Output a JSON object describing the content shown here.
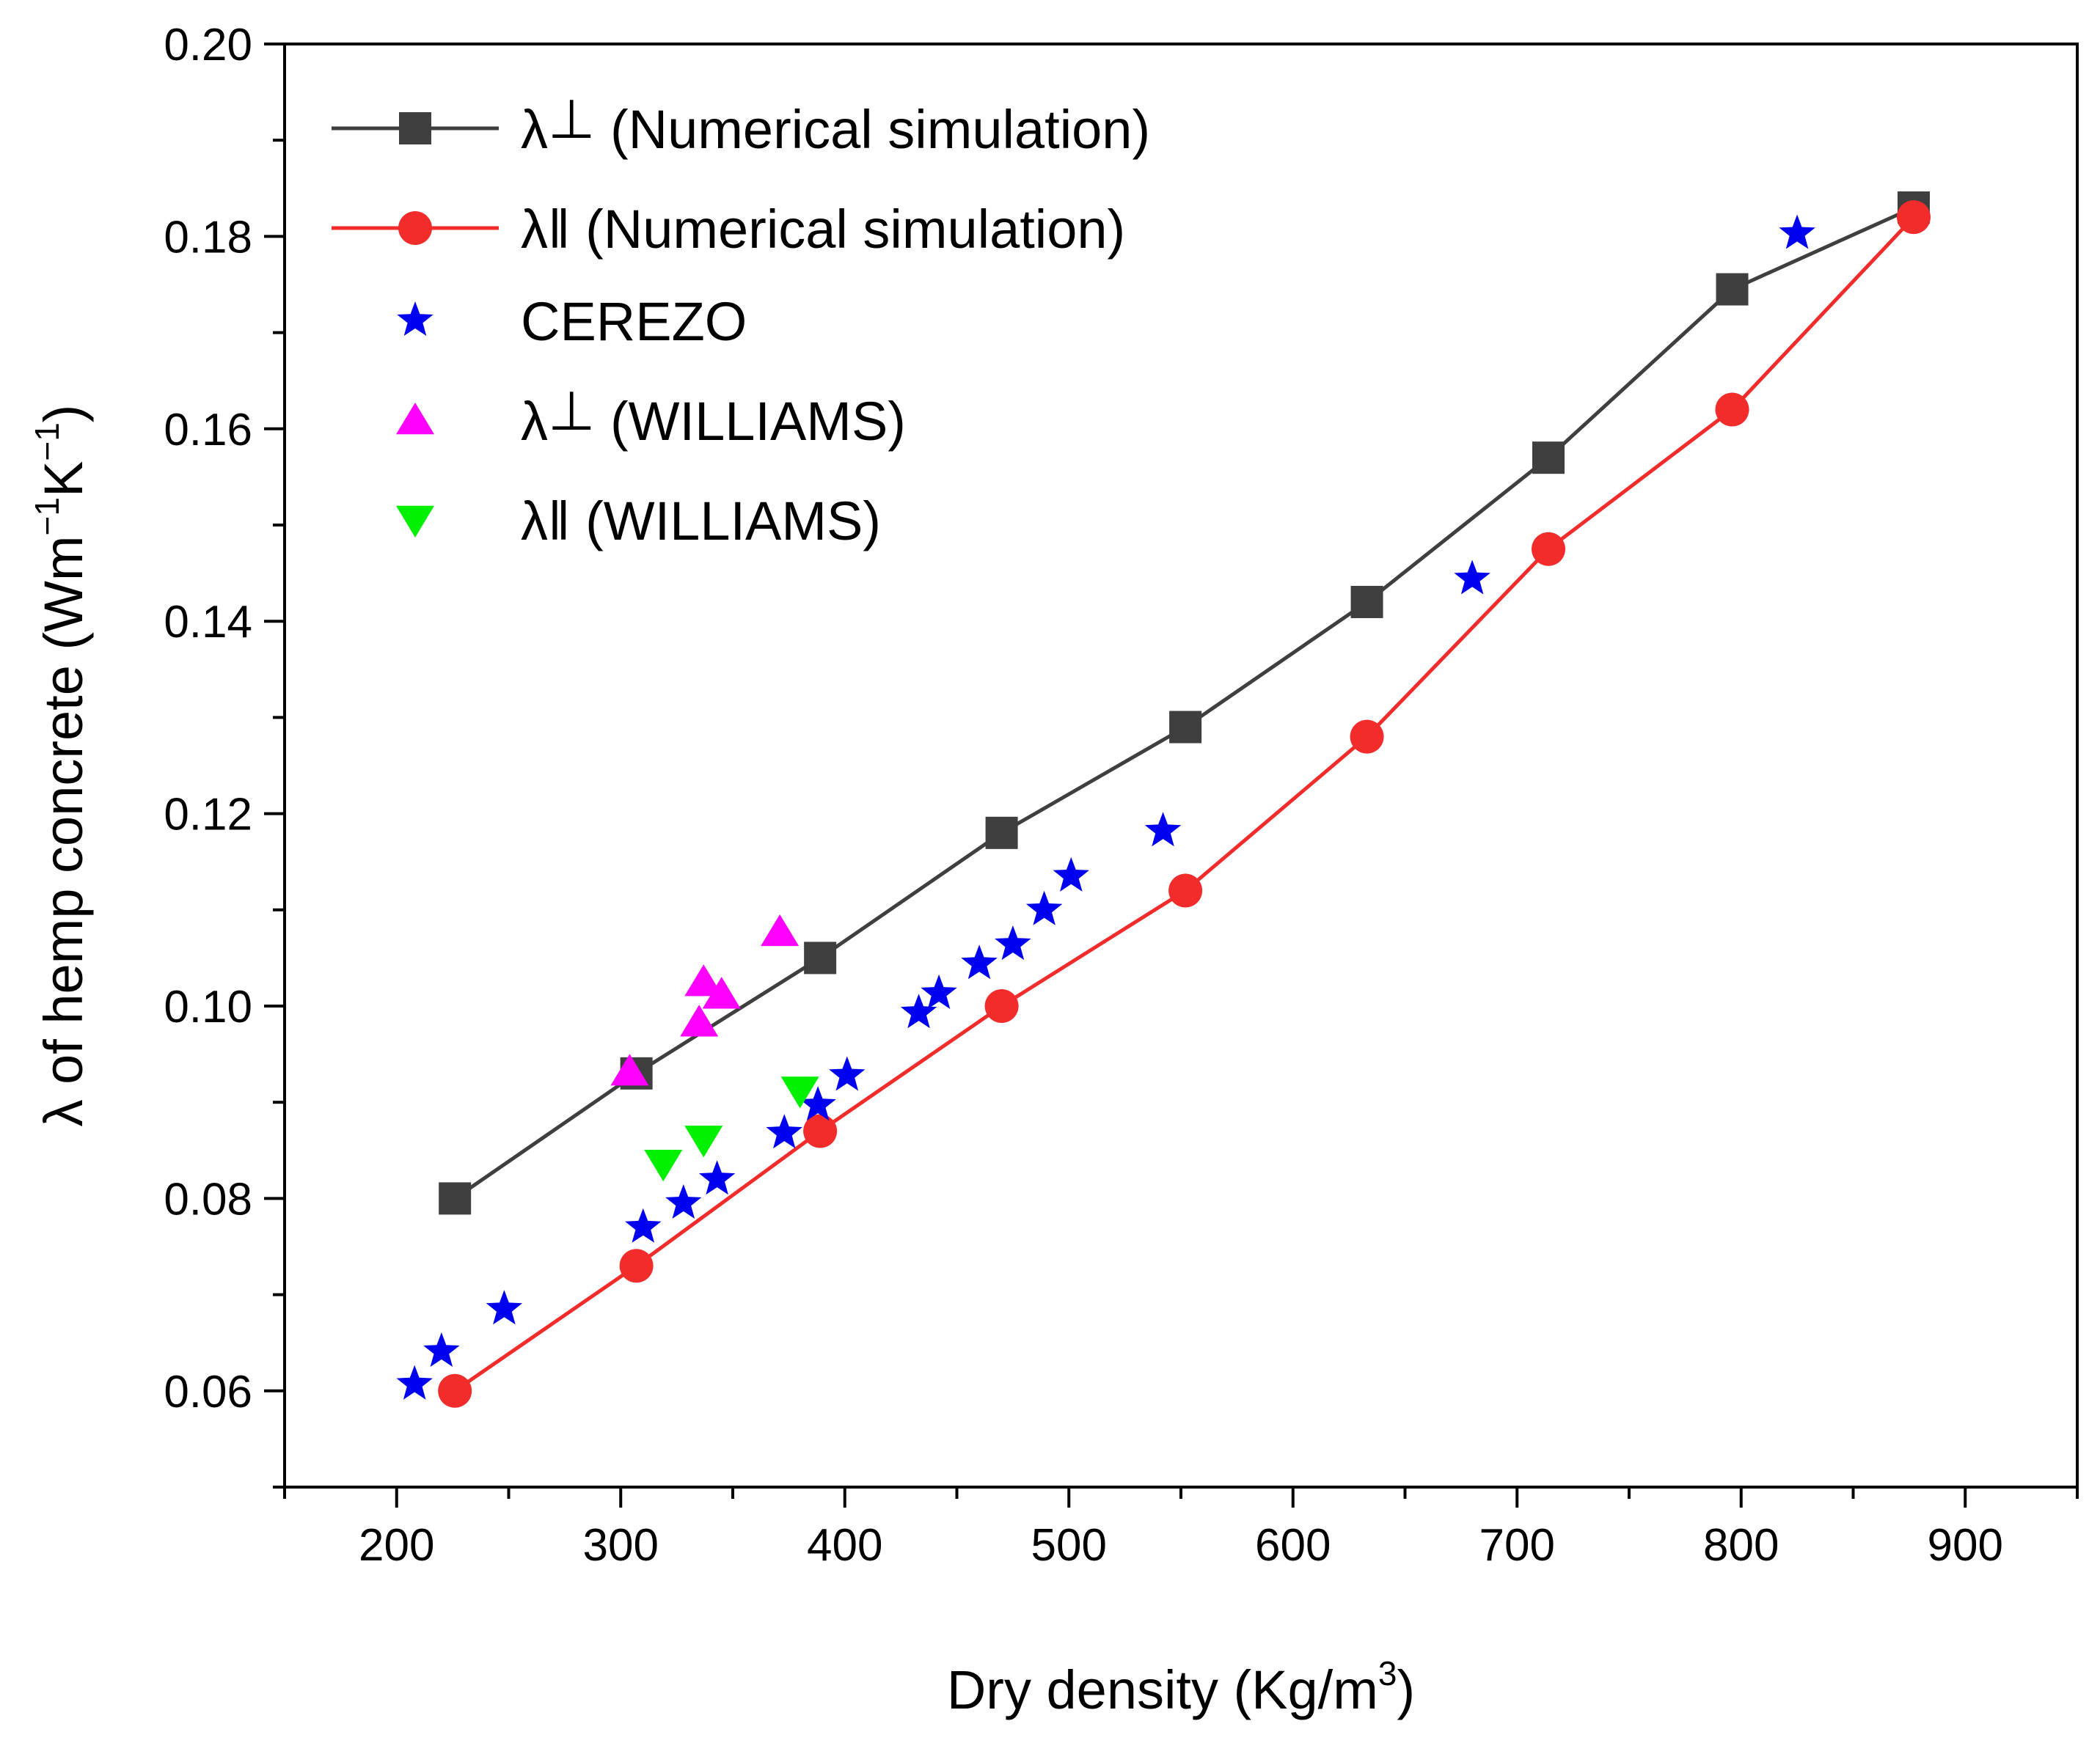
{
  "chart_data": {
    "type": "scatter",
    "xlabel_prefix": "Dry density (Kg/m",
    "xlabel_sup": "3",
    "xlabel_suffix": ")",
    "ylabel_prefix": "λ of hemp concrete (Wm",
    "ylabel_sup1": "−1",
    "ylabel_mid": "K",
    "ylabel_sup2": "−1",
    "ylabel_suffix": ")",
    "xlim": [
      150,
      950
    ],
    "ylim": [
      0.05,
      0.2
    ],
    "xticks": [
      200,
      300,
      400,
      500,
      600,
      700,
      800,
      900
    ],
    "xtick_labels": [
      "200",
      "300",
      "400",
      "500",
      "600",
      "700",
      "800",
      "900"
    ],
    "yticks": [
      0.06,
      0.08,
      0.1,
      0.12,
      0.14,
      0.16,
      0.18,
      0.2
    ],
    "ytick_labels": [
      "0.06",
      "0.08",
      "0.10",
      "0.12",
      "0.14",
      "0.16",
      "0.18",
      "0.20"
    ],
    "legend_position": "top-left",
    "series": [
      {
        "name": "λ⊥ (Numerical simulation)",
        "label_symbol": "λ",
        "label_mark": "⊥",
        "label_text": "(Numerical simulation)",
        "color": "#3f3f3f",
        "marker": "square",
        "line": true,
        "x": [
          226,
          307,
          389,
          470,
          552,
          633,
          714,
          796,
          877
        ],
        "y": [
          0.08,
          0.093,
          0.105,
          0.118,
          0.129,
          0.142,
          0.157,
          0.1745,
          0.183
        ]
      },
      {
        "name": "λ‖ (Numerical simulation)",
        "label_symbol": "λ",
        "label_mark": "‖",
        "label_text": "(Numerical simulation)",
        "color": "#f22b2b",
        "marker": "circle",
        "line": true,
        "x": [
          226,
          307,
          389,
          470,
          552,
          633,
          714,
          796,
          877
        ],
        "y": [
          0.06,
          0.073,
          0.087,
          0.1,
          0.112,
          0.128,
          0.1475,
          0.162,
          0.182
        ]
      },
      {
        "name": "CEREZO",
        "label_symbol": "",
        "label_mark": "",
        "label_text": "CEREZO",
        "color": "#0000f0",
        "marker": "star",
        "line": false,
        "x": [
          208,
          220,
          248,
          310,
          328,
          343,
          373,
          388,
          401,
          433,
          442,
          460,
          475,
          489,
          501,
          542,
          680,
          825
        ],
        "y": [
          0.0607,
          0.0641,
          0.0685,
          0.077,
          0.0795,
          0.082,
          0.0868,
          0.0897,
          0.0928,
          0.0993,
          0.1013,
          0.1044,
          0.1064,
          0.11,
          0.1135,
          0.1182,
          0.1444,
          0.1803
        ]
      },
      {
        "name": "λ⊥ (WILLIAMS)",
        "label_symbol": "λ",
        "label_mark": "⊥",
        "label_text": "(WILLIAMS)",
        "color": "#ff00ff",
        "marker": "triangle-up",
        "line": false,
        "x": [
          304,
          335,
          337,
          345,
          371
        ],
        "y": [
          0.0932,
          0.0983,
          0.1025,
          0.1012,
          0.1077
        ]
      },
      {
        "name": "λ‖ (WILLIAMS)",
        "label_symbol": "λ",
        "label_mark": "‖",
        "label_text": "(WILLIAMS)",
        "color": "#00f000",
        "marker": "triangle-down",
        "line": false,
        "x": [
          319,
          337,
          380
        ],
        "y": [
          0.0836,
          0.0861,
          0.0912
        ]
      }
    ]
  }
}
